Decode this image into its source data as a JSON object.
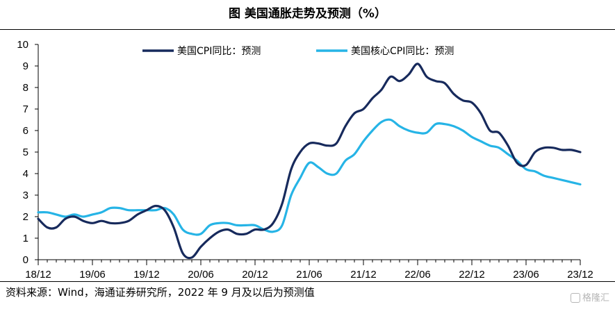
{
  "title": "图  美国通胀走势及预测（%）",
  "source": "资料来源：Wind，海通证券研究所，2022 年 9 月及以后为预测值",
  "watermark": "格隆汇",
  "colors": {
    "cpi": "#172a5c",
    "core": "#26b4e6",
    "axis": "#000000"
  },
  "chart_data": {
    "type": "line",
    "title": "美国通胀走势及预测（%）",
    "ylim": [
      0,
      10
    ],
    "y_ticks": [
      "0",
      "1",
      "2",
      "3",
      "4",
      "5",
      "6",
      "7",
      "8",
      "9",
      "10"
    ],
    "x_ticks": [
      "18/12",
      "19/06",
      "19/12",
      "20/06",
      "20/12",
      "21/06",
      "21/12",
      "22/06",
      "22/12",
      "23/06",
      "23/12"
    ],
    "x_months": [
      "2018-12",
      "2019-01",
      "2019-02",
      "2019-03",
      "2019-04",
      "2019-05",
      "2019-06",
      "2019-07",
      "2019-08",
      "2019-09",
      "2019-10",
      "2019-11",
      "2019-12",
      "2020-01",
      "2020-02",
      "2020-03",
      "2020-04",
      "2020-05",
      "2020-06",
      "2020-07",
      "2020-08",
      "2020-09",
      "2020-10",
      "2020-11",
      "2020-12",
      "2021-01",
      "2021-02",
      "2021-03",
      "2021-04",
      "2021-05",
      "2021-06",
      "2021-07",
      "2021-08",
      "2021-09",
      "2021-10",
      "2021-11",
      "2021-12",
      "2022-01",
      "2022-02",
      "2022-03",
      "2022-04",
      "2022-05",
      "2022-06",
      "2022-07",
      "2022-08",
      "2022-09",
      "2022-10",
      "2022-11",
      "2022-12",
      "2023-01",
      "2023-02",
      "2023-03",
      "2023-04",
      "2023-05",
      "2023-06",
      "2023-07",
      "2023-08",
      "2023-09",
      "2023-10",
      "2023-11",
      "2023-12"
    ],
    "legend_position": "top",
    "series": [
      {
        "name": "美国CPI同比：预测",
        "color": "#172a5c",
        "values": [
          1.9,
          1.5,
          1.5,
          1.9,
          2.0,
          1.8,
          1.7,
          1.8,
          1.7,
          1.7,
          1.8,
          2.1,
          2.3,
          2.5,
          2.3,
          1.5,
          0.3,
          0.1,
          0.6,
          1.0,
          1.3,
          1.4,
          1.2,
          1.2,
          1.4,
          1.4,
          1.7,
          2.6,
          4.2,
          5.0,
          5.4,
          5.4,
          5.3,
          5.4,
          6.2,
          6.8,
          7.0,
          7.5,
          7.9,
          8.5,
          8.3,
          8.6,
          9.1,
          8.5,
          8.3,
          8.2,
          7.7,
          7.4,
          7.3,
          6.8,
          6.0,
          5.9,
          5.3,
          4.5,
          4.4,
          5.0,
          5.2,
          5.2,
          5.1,
          5.1,
          5.0
        ]
      },
      {
        "name": "美国核心CPI同比：预测",
        "color": "#26b4e6",
        "values": [
          2.2,
          2.2,
          2.1,
          2.0,
          2.1,
          2.0,
          2.1,
          2.2,
          2.4,
          2.4,
          2.3,
          2.3,
          2.3,
          2.3,
          2.4,
          2.1,
          1.4,
          1.2,
          1.2,
          1.6,
          1.7,
          1.7,
          1.6,
          1.6,
          1.6,
          1.4,
          1.3,
          1.6,
          3.0,
          3.8,
          4.5,
          4.3,
          4.0,
          4.0,
          4.6,
          4.9,
          5.5,
          6.0,
          6.4,
          6.5,
          6.2,
          6.0,
          5.9,
          5.9,
          6.3,
          6.3,
          6.2,
          6.0,
          5.7,
          5.5,
          5.3,
          5.2,
          4.9,
          4.6,
          4.2,
          4.1,
          3.9,
          3.8,
          3.7,
          3.6,
          3.5
        ]
      }
    ]
  }
}
